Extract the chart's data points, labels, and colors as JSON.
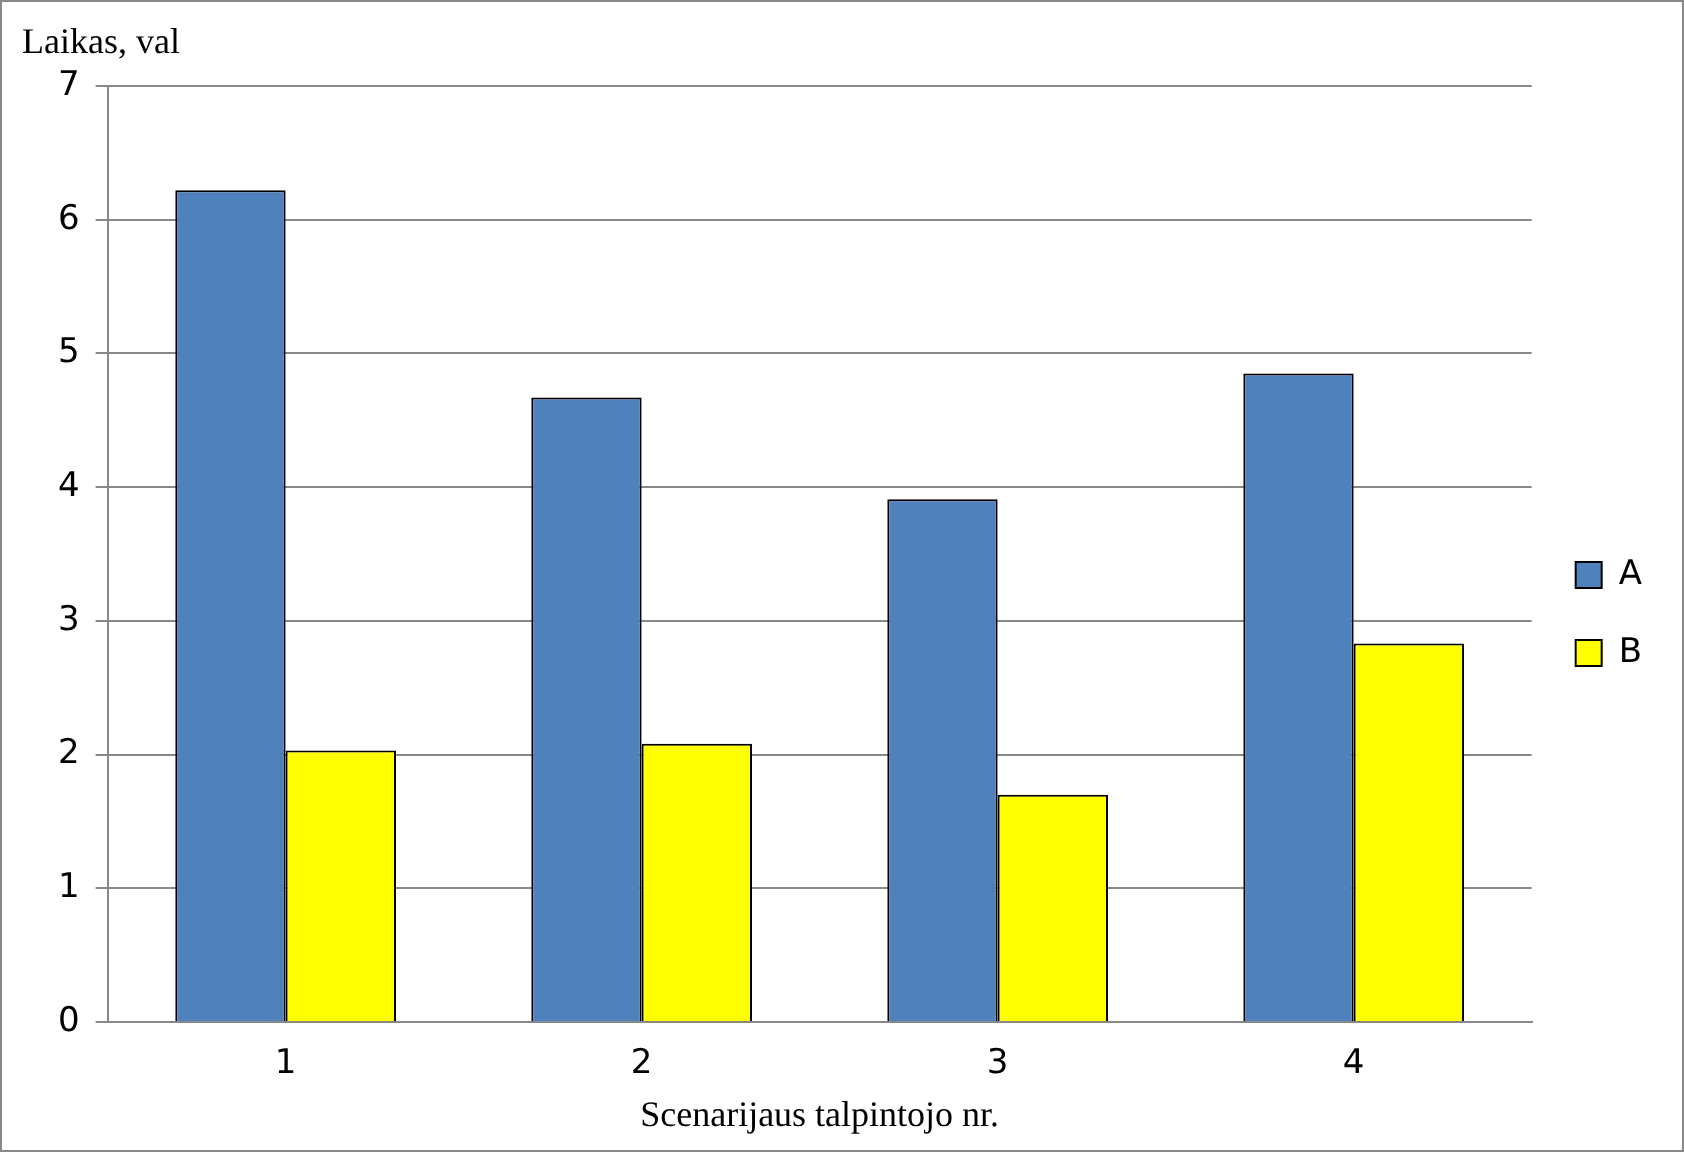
{
  "chart_data": {
    "type": "bar",
    "ylabel": "Laikas, val",
    "xlabel": "Scenarijaus talpintojo nr.",
    "categories": [
      "1",
      "2",
      "3",
      "4"
    ],
    "series": [
      {
        "name": "A",
        "color": "#4f81bd",
        "values": [
          6.22,
          4.67,
          3.91,
          4.85
        ]
      },
      {
        "name": "B",
        "color": "#ffff00",
        "values": [
          2.03,
          2.08,
          1.7,
          2.83
        ]
      }
    ],
    "ylim": [
      0,
      7
    ],
    "yticks": [
      0,
      1,
      2,
      3,
      4,
      5,
      6,
      7
    ],
    "grid": "y",
    "legend": "right"
  }
}
